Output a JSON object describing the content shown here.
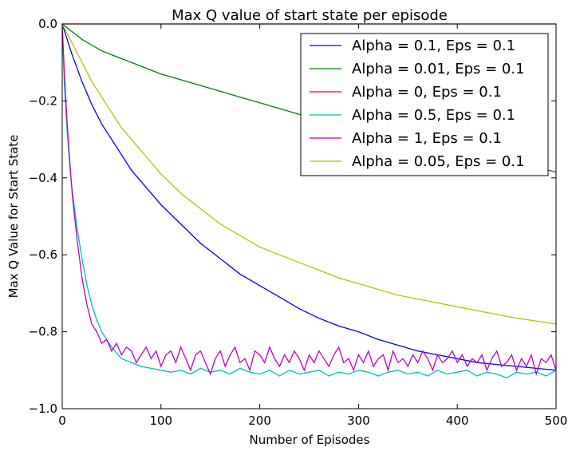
{
  "chart_data": {
    "type": "line",
    "title": "Max Q value of start state per episode",
    "xlabel": "Number of Episodes",
    "ylabel": "Max Q Value for Start State",
    "xlim": [
      0,
      500
    ],
    "ylim": [
      -1.0,
      0.0
    ],
    "xticks": [
      0,
      100,
      200,
      300,
      400,
      500
    ],
    "yticks": [
      0.0,
      -0.2,
      -0.4,
      -0.6,
      -0.8,
      -1.0
    ],
    "xtick_labels": [
      "0",
      "100",
      "200",
      "300",
      "400",
      "500"
    ],
    "ytick_labels": [
      "0.0",
      "−0.2",
      "−0.4",
      "−0.6",
      "−0.8",
      "−1.0"
    ],
    "grid": false,
    "legend_position": "top-right",
    "series": [
      {
        "name": "Alpha = 0.1, Eps = 0.1",
        "color": "#0000ff",
        "x": [
          0,
          5,
          10,
          20,
          30,
          40,
          50,
          60,
          70,
          80,
          90,
          100,
          120,
          140,
          160,
          180,
          200,
          220,
          240,
          260,
          280,
          300,
          320,
          340,
          360,
          380,
          400,
          420,
          440,
          460,
          480,
          500
        ],
        "y": [
          0.0,
          -0.04,
          -0.08,
          -0.15,
          -0.21,
          -0.26,
          -0.3,
          -0.34,
          -0.38,
          -0.41,
          -0.44,
          -0.47,
          -0.52,
          -0.57,
          -0.61,
          -0.65,
          -0.68,
          -0.71,
          -0.74,
          -0.765,
          -0.785,
          -0.8,
          -0.82,
          -0.835,
          -0.85,
          -0.86,
          -0.87,
          -0.88,
          -0.885,
          -0.89,
          -0.895,
          -0.9
        ]
      },
      {
        "name": "Alpha = 0.01, Eps = 0.1",
        "color": "#008000",
        "x": [
          0,
          10,
          20,
          30,
          40,
          50,
          60,
          80,
          100,
          120,
          140,
          160,
          180,
          200,
          220,
          240,
          260,
          280,
          300,
          320,
          340,
          360,
          380,
          400,
          420,
          440,
          460,
          480,
          500
        ],
        "y": [
          0.0,
          -0.02,
          -0.04,
          -0.055,
          -0.07,
          -0.08,
          -0.09,
          -0.11,
          -0.13,
          -0.145,
          -0.16,
          -0.175,
          -0.19,
          -0.205,
          -0.22,
          -0.235,
          -0.25,
          -0.265,
          -0.28,
          -0.29,
          -0.3,
          -0.31,
          -0.32,
          -0.33,
          -0.34,
          -0.35,
          -0.36,
          -0.372,
          -0.385
        ]
      },
      {
        "name": "Alpha = 0, Eps = 0.1",
        "color": "#ff0000",
        "x": [
          0,
          500
        ],
        "y": [
          0.0,
          0.0
        ]
      },
      {
        "name": "Alpha = 0.5, Eps = 0.1",
        "color": "#00bfbf",
        "x": [
          0,
          2,
          5,
          8,
          10,
          15,
          20,
          25,
          30,
          35,
          40,
          50,
          60,
          70,
          80,
          90,
          100,
          110,
          120,
          130,
          140,
          150,
          160,
          170,
          180,
          190,
          200,
          210,
          220,
          230,
          240,
          250,
          260,
          270,
          280,
          290,
          300,
          310,
          320,
          330,
          340,
          350,
          360,
          370,
          380,
          390,
          400,
          410,
          420,
          430,
          440,
          450,
          460,
          470,
          480,
          490,
          500
        ],
        "y": [
          0.0,
          -0.15,
          -0.28,
          -0.38,
          -0.43,
          -0.53,
          -0.61,
          -0.68,
          -0.73,
          -0.77,
          -0.8,
          -0.84,
          -0.87,
          -0.88,
          -0.89,
          -0.895,
          -0.9,
          -0.905,
          -0.9,
          -0.91,
          -0.895,
          -0.905,
          -0.9,
          -0.91,
          -0.895,
          -0.905,
          -0.91,
          -0.9,
          -0.915,
          -0.9,
          -0.91,
          -0.905,
          -0.9,
          -0.915,
          -0.905,
          -0.91,
          -0.9,
          -0.905,
          -0.915,
          -0.905,
          -0.9,
          -0.91,
          -0.905,
          -0.915,
          -0.9,
          -0.91,
          -0.905,
          -0.9,
          -0.915,
          -0.905,
          -0.91,
          -0.92,
          -0.905,
          -0.91,
          -0.905,
          -0.915,
          -0.9
        ]
      },
      {
        "name": "Alpha = 1, Eps = 0.1",
        "color": "#bf00bf",
        "x": [
          0,
          2,
          5,
          8,
          10,
          15,
          20,
          25,
          30,
          35,
          40,
          45,
          50,
          55,
          60,
          65,
          70,
          75,
          80,
          85,
          90,
          95,
          100,
          105,
          110,
          115,
          120,
          125,
          130,
          135,
          140,
          145,
          150,
          155,
          160,
          165,
          170,
          175,
          180,
          185,
          190,
          195,
          200,
          205,
          210,
          215,
          220,
          225,
          230,
          235,
          240,
          245,
          250,
          255,
          260,
          265,
          270,
          275,
          280,
          285,
          290,
          295,
          300,
          305,
          310,
          315,
          320,
          325,
          330,
          335,
          340,
          345,
          350,
          355,
          360,
          365,
          370,
          375,
          380,
          385,
          390,
          395,
          400,
          405,
          410,
          415,
          420,
          425,
          430,
          435,
          440,
          445,
          450,
          455,
          460,
          465,
          470,
          475,
          480,
          485,
          490,
          495,
          500
        ],
        "y": [
          0.0,
          -0.12,
          -0.26,
          -0.37,
          -0.44,
          -0.56,
          -0.66,
          -0.73,
          -0.78,
          -0.8,
          -0.83,
          -0.82,
          -0.85,
          -0.83,
          -0.86,
          -0.84,
          -0.85,
          -0.88,
          -0.86,
          -0.84,
          -0.87,
          -0.85,
          -0.89,
          -0.86,
          -0.85,
          -0.88,
          -0.84,
          -0.87,
          -0.9,
          -0.86,
          -0.85,
          -0.88,
          -0.91,
          -0.87,
          -0.85,
          -0.89,
          -0.86,
          -0.84,
          -0.88,
          -0.87,
          -0.9,
          -0.85,
          -0.86,
          -0.88,
          -0.84,
          -0.87,
          -0.89,
          -0.86,
          -0.88,
          -0.85,
          -0.87,
          -0.9,
          -0.86,
          -0.88,
          -0.85,
          -0.87,
          -0.89,
          -0.86,
          -0.84,
          -0.88,
          -0.87,
          -0.9,
          -0.86,
          -0.88,
          -0.85,
          -0.89,
          -0.87,
          -0.86,
          -0.9,
          -0.85,
          -0.88,
          -0.87,
          -0.89,
          -0.86,
          -0.88,
          -0.85,
          -0.87,
          -0.9,
          -0.86,
          -0.88,
          -0.87,
          -0.85,
          -0.88,
          -0.86,
          -0.89,
          -0.87,
          -0.88,
          -0.86,
          -0.9,
          -0.87,
          -0.85,
          -0.89,
          -0.88,
          -0.86,
          -0.9,
          -0.87,
          -0.89,
          -0.86,
          -0.91,
          -0.87,
          -0.88,
          -0.86,
          -0.9
        ]
      },
      {
        "name": "Alpha = 0.05, Eps = 0.1",
        "color": "#bfbf00",
        "x": [
          0,
          10,
          20,
          30,
          40,
          50,
          60,
          70,
          80,
          90,
          100,
          120,
          140,
          160,
          180,
          200,
          220,
          240,
          260,
          280,
          300,
          320,
          340,
          360,
          380,
          400,
          420,
          440,
          460,
          480,
          500
        ],
        "y": [
          0.0,
          -0.05,
          -0.1,
          -0.15,
          -0.19,
          -0.23,
          -0.27,
          -0.3,
          -0.33,
          -0.36,
          -0.39,
          -0.44,
          -0.48,
          -0.52,
          -0.55,
          -0.58,
          -0.6,
          -0.62,
          -0.64,
          -0.66,
          -0.675,
          -0.69,
          -0.705,
          -0.715,
          -0.725,
          -0.735,
          -0.745,
          -0.755,
          -0.765,
          -0.772,
          -0.78
        ]
      }
    ]
  }
}
